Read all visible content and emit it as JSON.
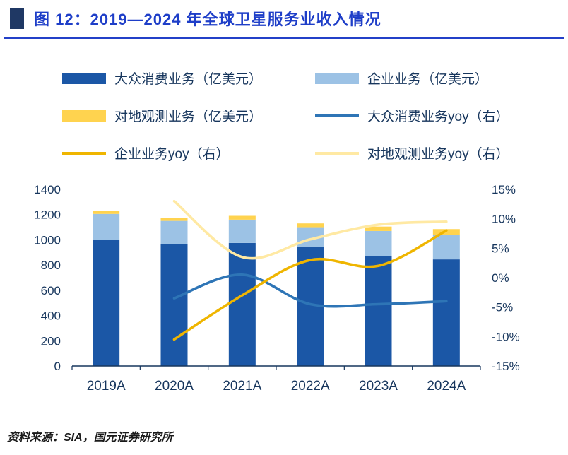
{
  "header": {
    "title": "图 12：2019—2024 年全球卫星服务业收入情况",
    "accent_color": "#1e3ec8"
  },
  "legend": {
    "items": [
      {
        "label": "大众消费业务（亿美元）",
        "type": "bar",
        "color": "#1b57a6"
      },
      {
        "label": "企业业务（亿美元）",
        "type": "bar",
        "color": "#9cc2e5"
      },
      {
        "label": "对地观测业务（亿美元）",
        "type": "bar",
        "color": "#ffd34f"
      },
      {
        "label": "大众消费业务yoy（右）",
        "type": "line",
        "color": "#2e75b6"
      },
      {
        "label": "企业业务yoy（右）",
        "type": "line",
        "color": "#efb500"
      },
      {
        "label": "对地观测业务yoy（右）",
        "type": "line",
        "color": "#ffe9a3"
      }
    ]
  },
  "chart_data": {
    "type": "bar",
    "subtype": "stacked-bars-with-yoy-lines",
    "categories": [
      "2019A",
      "2020A",
      "2021A",
      "2022A",
      "2023A",
      "2024A"
    ],
    "bar_series": [
      {
        "name": "大众消费业务（亿美元）",
        "color": "#1b57a6",
        "values": [
          1000,
          965,
          975,
          945,
          870,
          845
        ]
      },
      {
        "name": "企业业务（亿美元）",
        "color": "#9cc2e5",
        "values": [
          205,
          185,
          185,
          155,
          200,
          195
        ]
      },
      {
        "name": "对地观测业务（亿美元）",
        "color": "#ffd34f",
        "values": [
          25,
          25,
          30,
          30,
          35,
          45
        ]
      }
    ],
    "line_series": [
      {
        "name": "对地观测业务yoy（右）",
        "color": "#ffe9a3",
        "axis": "right",
        "values": [
          null,
          13,
          3.5,
          6.5,
          9,
          9.5
        ]
      },
      {
        "name": "大众消费业务yoy（右）",
        "color": "#2e75b6",
        "axis": "right",
        "values": [
          null,
          -3.5,
          0.5,
          -4.5,
          -4.5,
          -4
        ]
      },
      {
        "name": "企业业务yoy（右）",
        "color": "#efb500",
        "axis": "right",
        "values": [
          null,
          -10.5,
          -3,
          3,
          2,
          8
        ]
      }
    ],
    "left_axis": {
      "min": 0,
      "max": 1400,
      "step": 200,
      "ticks": [
        "0",
        "200",
        "400",
        "600",
        "800",
        "1000",
        "1200",
        "1400"
      ]
    },
    "right_axis": {
      "min": -15,
      "max": 15,
      "step": 5,
      "ticks": [
        "-15%",
        "-10%",
        "-5%",
        "0%",
        "5%",
        "10%",
        "15%"
      ]
    },
    "grid": false,
    "legend_position": "top"
  },
  "source": {
    "text": "资料来源：SIA，国元证券研究所"
  }
}
